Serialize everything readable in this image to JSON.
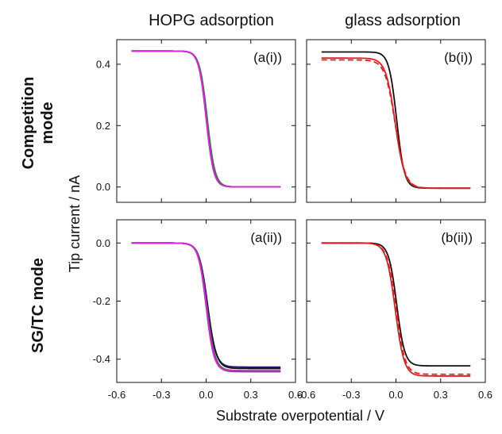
{
  "figure": {
    "column_titles": [
      "HOPG adsorption",
      "glass adsorption"
    ],
    "row_titles": [
      [
        "Competition",
        "mode"
      ],
      [
        "SG/TC mode"
      ]
    ],
    "ylabel": "Tip current / nA",
    "xlabel": "Substrate overpotential / V",
    "x_ticks": [
      "-0.6",
      "-0.3",
      "0.0",
      "0.3",
      "0.6"
    ],
    "y_ticks_top": [
      "0.0",
      "0.2",
      "0.4"
    ],
    "y_ticks_bottom": [
      "-0.4",
      "-0.2",
      "0.0"
    ]
  },
  "chart_data": [
    {
      "panel": "(a(i))",
      "type": "line",
      "xlim": [
        -0.6,
        0.6
      ],
      "ylim": [
        -0.05,
        0.48
      ],
      "curve_model": "logistic: y = plateau_high*(1 - 1/(1+exp(-(x-center)/width)))",
      "series": [
        {
          "color": "#1f1f7a",
          "style": "solid",
          "x_range": [
            -0.5,
            0.5
          ],
          "plateau_start": 0.443,
          "plateau_end": 0.0,
          "center": 0.005,
          "width": 0.026
        },
        {
          "color": "#2a8a2a",
          "style": "solid",
          "x_range": [
            -0.5,
            0.5
          ],
          "plateau_start": 0.443,
          "plateau_end": 0.0,
          "center": 0.008,
          "width": 0.026
        },
        {
          "color": "#6a3fa0",
          "style": "solid",
          "x_range": [
            -0.5,
            0.5
          ],
          "plateau_start": 0.443,
          "plateau_end": 0.0,
          "center": 0.002,
          "width": 0.025
        },
        {
          "color": "#e61fe6",
          "style": "solid",
          "x_range": [
            -0.5,
            0.5
          ],
          "plateau_start": 0.443,
          "plateau_end": 0.0,
          "center": 0.0,
          "width": 0.025
        }
      ]
    },
    {
      "panel": "(b(i))",
      "type": "line",
      "xlim": [
        -0.6,
        0.6
      ],
      "ylim": [
        -0.05,
        0.48
      ],
      "series": [
        {
          "color": "#111111",
          "style": "solid",
          "x_range": [
            -0.5,
            0.5
          ],
          "plateau_start": 0.44,
          "plateau_end": -0.004,
          "center": 0.005,
          "width": 0.026
        },
        {
          "color": "#e02020",
          "style": "solid",
          "x_range": [
            -0.5,
            0.5
          ],
          "plateau_start": 0.42,
          "plateau_end": -0.004,
          "center": -0.005,
          "width": 0.032
        },
        {
          "color": "#e02020",
          "style": "dashed",
          "x_range": [
            -0.5,
            0.5
          ],
          "plateau_start": 0.414,
          "plateau_end": -0.004,
          "center": -0.005,
          "width": 0.034
        }
      ]
    },
    {
      "panel": "(a(ii))",
      "type": "line",
      "xlim": [
        -0.6,
        0.6
      ],
      "ylim": [
        -0.48,
        0.08
      ],
      "series": [
        {
          "color": "#1f1f7a",
          "style": "solid",
          "x_range": [
            -0.5,
            0.5
          ],
          "plateau_start": 0.0,
          "plateau_end": -0.427,
          "center": 0.01,
          "width": 0.028
        },
        {
          "color": "#111111",
          "style": "solid",
          "x_range": [
            -0.5,
            0.5
          ],
          "plateau_start": 0.0,
          "plateau_end": -0.432,
          "center": 0.01,
          "width": 0.029
        },
        {
          "color": "#2a8a2a",
          "style": "solid",
          "x_range": [
            -0.5,
            0.5
          ],
          "plateau_start": 0.0,
          "plateau_end": -0.439,
          "center": 0.006,
          "width": 0.027
        },
        {
          "color": "#6a3fa0",
          "style": "solid",
          "x_range": [
            -0.5,
            0.5
          ],
          "plateau_start": 0.0,
          "plateau_end": -0.443,
          "center": 0.004,
          "width": 0.027
        },
        {
          "color": "#e61fe6",
          "style": "solid",
          "x_range": [
            -0.5,
            0.5
          ],
          "plateau_start": 0.0,
          "plateau_end": -0.44,
          "center": 0.0,
          "width": 0.026
        }
      ]
    },
    {
      "panel": "(b(ii))",
      "type": "line",
      "xlim": [
        -0.6,
        0.6
      ],
      "ylim": [
        -0.48,
        0.08
      ],
      "series": [
        {
          "color": "#111111",
          "style": "solid",
          "x_range": [
            -0.5,
            0.5
          ],
          "plateau_start": 0.0,
          "plateau_end": -0.423,
          "center": 0.005,
          "width": 0.027
        },
        {
          "color": "#e02020",
          "style": "solid",
          "x_range": [
            -0.5,
            0.5
          ],
          "plateau_start": 0.0,
          "plateau_end": -0.458,
          "center": -0.005,
          "width": 0.03
        },
        {
          "color": "#e02020",
          "style": "dashed",
          "x_range": [
            -0.5,
            0.5
          ],
          "plateau_start": 0.0,
          "plateau_end": -0.452,
          "center": 0.0,
          "width": 0.03
        }
      ]
    }
  ]
}
